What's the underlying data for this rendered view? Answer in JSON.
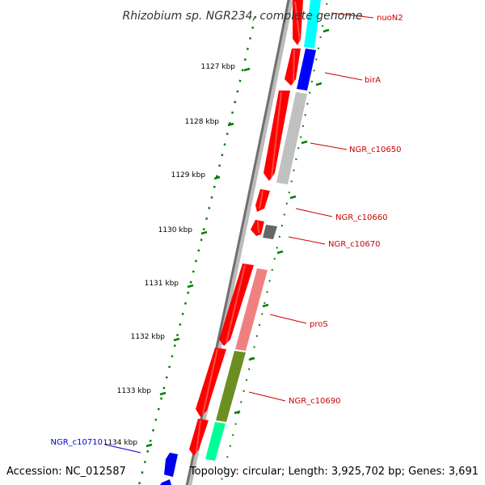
{
  "title": "Rhizobium sp. NGR234, complete genome",
  "footer": {
    "accession": "Accession: NC_012587",
    "topology": "Topology: circular; Length: 3,925,702 bp; Genes: 3,691"
  },
  "colors": {
    "strand_forward": "#ff0000",
    "label_forward": "#cc0000",
    "label_reverse": "#0000cc",
    "tick": "#008000",
    "backbone": "#888888"
  },
  "scale_ticks": [
    "1127 kbp",
    "1128 kbp",
    "1129 kbp",
    "1130 kbp",
    "1131 kbp",
    "1132 kbp",
    "1133 kbp",
    "1134 kbp"
  ],
  "gene_labels": [
    {
      "text": "nuoN2",
      "color": "#cc0000"
    },
    {
      "text": "birA",
      "color": "#cc0000"
    },
    {
      "text": "NGR_c10650",
      "color": "#cc0000"
    },
    {
      "text": "NGR_c10660",
      "color": "#cc0000"
    },
    {
      "text": "NGR_c10670",
      "color": "#cc0000"
    },
    {
      "text": "proS",
      "color": "#cc0000"
    },
    {
      "text": "NGR_c10690",
      "color": "#cc0000"
    },
    {
      "text": "NGR_c10710",
      "color": "#0000cc"
    }
  ],
  "cog_colors": [
    "#00ffff",
    "#0000ff",
    "#c0c0c0",
    "#666666",
    "#f08080",
    "#6b8e23",
    "#00ff99"
  ]
}
